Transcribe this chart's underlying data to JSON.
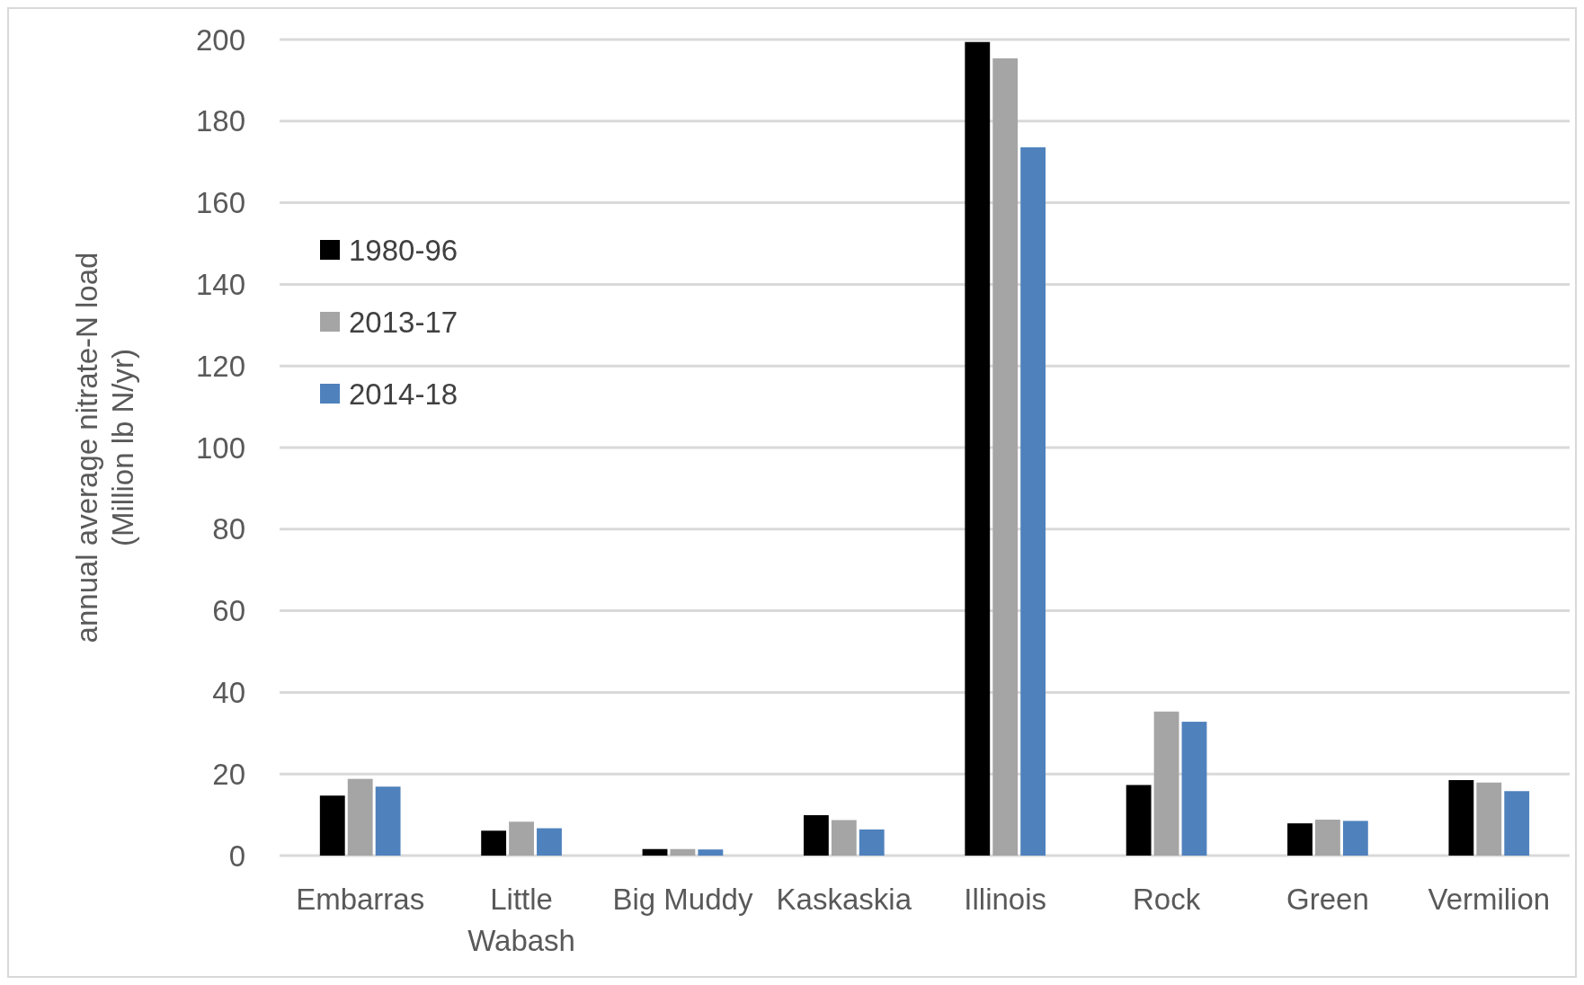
{
  "chart_data": {
    "type": "bar",
    "ylabel": "annual average nitrate-N load\n(Million lb N/yr)",
    "categories": [
      "Embarras",
      "Little Wabash",
      "Big Muddy",
      "Kaskaskia",
      "Illinois",
      "Rock",
      "Green",
      "Vermilion"
    ],
    "series": [
      {
        "name": "1980-96",
        "color": "#000000",
        "values": [
          14.7,
          6.1,
          1.6,
          9.9,
          199.4,
          17.3,
          7.9,
          18.5
        ]
      },
      {
        "name": "2013-17",
        "color": "#a5a5a5",
        "values": [
          18.8,
          8.3,
          1.6,
          8.7,
          195.4,
          35.3,
          8.8,
          17.9
        ]
      },
      {
        "name": "2014-18",
        "color": "#4f81bd",
        "values": [
          16.9,
          6.7,
          1.5,
          6.4,
          173.6,
          32.8,
          8.5,
          15.8
        ]
      }
    ],
    "ylim": [
      0,
      200
    ],
    "yticks": [
      0,
      20,
      40,
      60,
      80,
      100,
      120,
      140,
      160,
      180,
      200
    ],
    "grid": "y",
    "legend": "top left"
  }
}
